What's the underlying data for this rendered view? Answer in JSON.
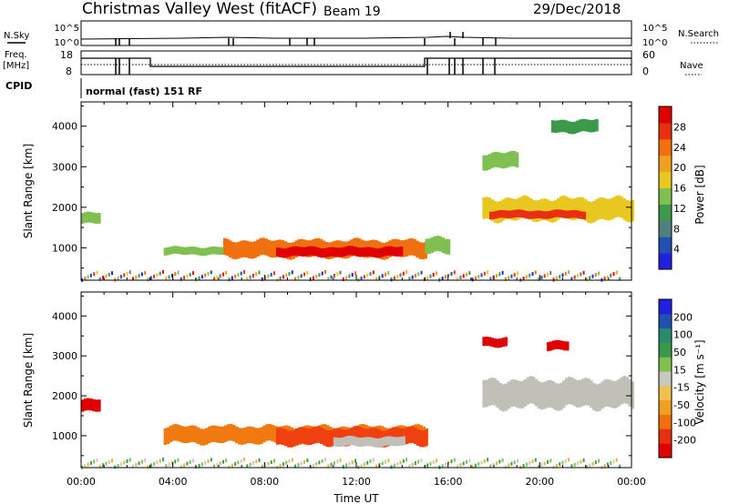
{
  "header": {
    "title": "Christmas Valley West (fitACF)",
    "beam": "Beam 19",
    "date": "29/Dec/2018"
  },
  "strips": {
    "nsky_label": "N.Sky",
    "nsky_ticks": [
      "10^5",
      "10^0"
    ],
    "nsearch_label": "N.Search",
    "nsearch_ticks": [
      "10^5",
      "10^0"
    ],
    "freq_label_1": "Freq.",
    "freq_label_2": "[MHz]",
    "freq_ticks": [
      "18",
      "8"
    ],
    "nave_label": "Nave",
    "nave_ticks": [
      "60",
      "0"
    ],
    "cpid_label": "CPID",
    "cpid_text": "normal (fast) 151 RF"
  },
  "colors": {
    "power_scale": [
      "#2020e0",
      "#2050b0",
      "#4f7f7f",
      "#3a9a4a",
      "#7fc050",
      "#e8c820",
      "#f0a020",
      "#f07010",
      "#e83010",
      "#e00000"
    ],
    "velocity_scale": [
      "#e00000",
      "#e83010",
      "#f07010",
      "#f0a020",
      "#f0c050",
      "#c8c8c0",
      "#7fc050",
      "#3a9a4a",
      "#2a8a70",
      "#2050b0",
      "#2020e0"
    ],
    "ground_gray": "#c0c0b8"
  },
  "chart_data": [
    {
      "type": "heatmap",
      "panel": "power",
      "ylabel": "Slant Range [km]",
      "y_ticks": [
        "4000",
        "3000",
        "2000",
        "1000"
      ],
      "ylim": [
        200,
        4600
      ],
      "x_ticks": [
        "00:00",
        "04:00",
        "08:00",
        "12:00",
        "16:00",
        "20:00",
        "00:00"
      ],
      "colorbar_label": "Power [dB]",
      "colorbar_ticks": [
        "28",
        "24",
        "20",
        "16",
        "12",
        "8",
        "4"
      ],
      "colorbar_range": [
        0,
        30
      ],
      "regions": [
        {
          "t0": 0.0,
          "t1": 0.8,
          "r0": 1550,
          "r1": 1900,
          "value": 12
        },
        {
          "t0": 3.6,
          "t1": 6.2,
          "r0": 800,
          "r1": 1050,
          "value": 14
        },
        {
          "t0": 6.2,
          "t1": 15.0,
          "r0": 700,
          "r1": 1250,
          "value": 22
        },
        {
          "t0": 8.5,
          "t1": 14.0,
          "r0": 750,
          "r1": 1050,
          "value": 28
        },
        {
          "t0": 15.0,
          "t1": 16.0,
          "r0": 800,
          "r1": 1300,
          "value": 12
        },
        {
          "t0": 17.5,
          "t1": 24.0,
          "r0": 1600,
          "r1": 2300,
          "value": 16
        },
        {
          "t0": 17.8,
          "t1": 22.0,
          "r0": 1700,
          "r1": 1950,
          "value": 24
        },
        {
          "t0": 17.5,
          "t1": 19.0,
          "r0": 2900,
          "r1": 3400,
          "value": 14
        },
        {
          "t0": 20.5,
          "t1": 22.5,
          "r0": 3800,
          "r1": 4200,
          "value": 10
        }
      ]
    },
    {
      "type": "heatmap",
      "panel": "velocity",
      "ylabel": "Slant Range [km]",
      "y_ticks": [
        "4000",
        "3000",
        "2000",
        "1000"
      ],
      "ylim": [
        200,
        4600
      ],
      "x_ticks": [
        "00:00",
        "04:00",
        "08:00",
        "12:00",
        "16:00",
        "20:00",
        "00:00"
      ],
      "xlabel": "Time UT",
      "colorbar_label": "Velocity [m s⁻¹]",
      "colorbar_ticks": [
        "200",
        "100",
        "50",
        "15",
        "-15",
        "-50",
        "-100",
        "-200"
      ],
      "regions": [
        {
          "t0": 0.0,
          "t1": 0.8,
          "r0": 1550,
          "r1": 1950,
          "value": -100
        },
        {
          "t0": 3.6,
          "t1": 15.0,
          "r0": 750,
          "r1": 1300,
          "value": -40
        },
        {
          "t0": 8.5,
          "t1": 15.0,
          "r0": 700,
          "r1": 1250,
          "value": -60
        },
        {
          "t0": 11.0,
          "t1": 14.0,
          "r0": 700,
          "r1": 1000,
          "value": 0
        },
        {
          "t0": 17.5,
          "t1": 24.0,
          "r0": 1600,
          "r1": 2500,
          "value": 0
        },
        {
          "t0": 17.5,
          "t1": 18.5,
          "r0": 3200,
          "r1": 3500,
          "value": -150
        },
        {
          "t0": 20.3,
          "t1": 21.2,
          "r0": 3100,
          "r1": 3400,
          "value": -180
        }
      ]
    }
  ]
}
